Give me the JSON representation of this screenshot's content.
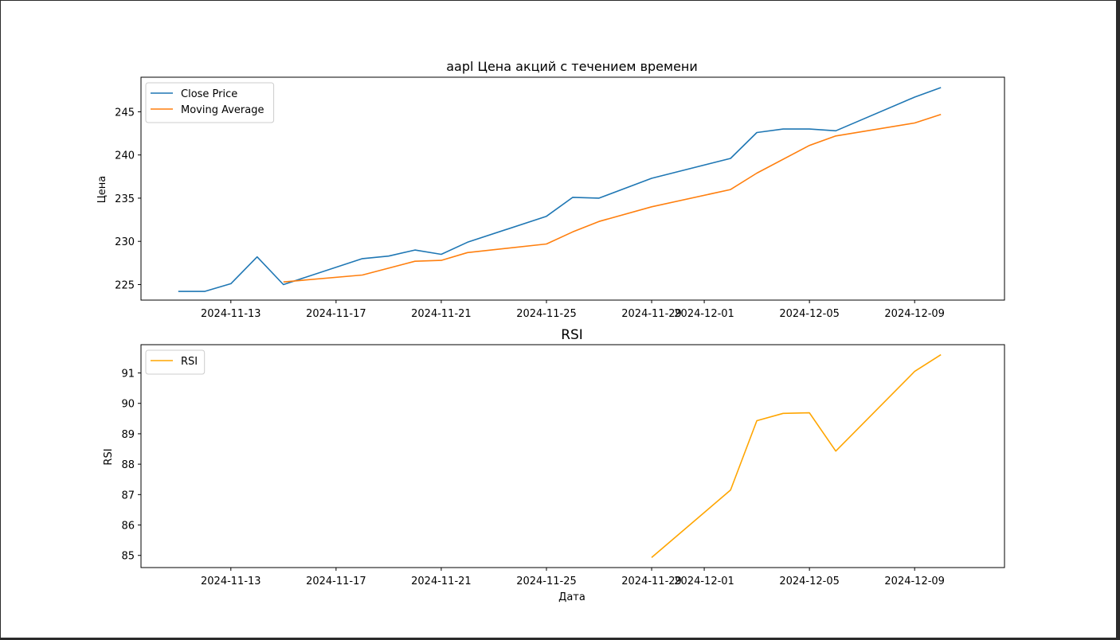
{
  "chart_data": [
    {
      "type": "line",
      "title": "aapl Цена акций с течением времени",
      "xlabel": "",
      "ylabel": "Цена",
      "x_ticks": [
        "2024-11-13",
        "2024-11-17",
        "2024-11-21",
        "2024-11-25",
        "2024-11-29",
        "2024-12-01",
        "2024-12-05",
        "2024-12-09"
      ],
      "y_ticks": [
        225,
        230,
        235,
        240,
        245
      ],
      "ylim": [
        223.2,
        249.0
      ],
      "xlim": [
        "2024-11-09T14:00",
        "2024-12-12T10:00"
      ],
      "legend_position": "upper-left",
      "grid": false,
      "series": [
        {
          "name": "Close Price",
          "color": "#1f77b4",
          "points": [
            [
              "2024-11-11",
              224.2
            ],
            [
              "2024-11-12",
              224.2
            ],
            [
              "2024-11-13",
              225.1
            ],
            [
              "2024-11-14",
              228.2
            ],
            [
              "2024-11-15",
              225.0
            ],
            [
              "2024-11-18",
              228.0
            ],
            [
              "2024-11-19",
              228.3
            ],
            [
              "2024-11-20",
              229.0
            ],
            [
              "2024-11-21",
              228.5
            ],
            [
              "2024-11-22",
              229.9
            ],
            [
              "2024-11-25",
              232.9
            ],
            [
              "2024-11-26",
              235.1
            ],
            [
              "2024-11-27",
              235.0
            ],
            [
              "2024-11-29",
              237.3
            ],
            [
              "2024-12-02",
              239.6
            ],
            [
              "2024-12-03",
              242.6
            ],
            [
              "2024-12-04",
              243.0
            ],
            [
              "2024-12-05",
              243.0
            ],
            [
              "2024-12-06",
              242.8
            ],
            [
              "2024-12-09",
              246.7
            ],
            [
              "2024-12-10",
              247.8
            ]
          ]
        },
        {
          "name": "Moving Average",
          "color": "#ff7f0e",
          "points": [
            [
              "2024-11-15",
              225.3
            ],
            [
              "2024-11-18",
              226.1
            ],
            [
              "2024-11-20",
              227.7
            ],
            [
              "2024-11-21",
              227.8
            ],
            [
              "2024-11-22",
              228.7
            ],
            [
              "2024-11-25",
              229.7
            ],
            [
              "2024-11-26",
              231.1
            ],
            [
              "2024-11-27",
              232.3
            ],
            [
              "2024-11-29",
              234.0
            ],
            [
              "2024-12-02",
              236.0
            ],
            [
              "2024-12-03",
              237.9
            ],
            [
              "2024-12-05",
              241.1
            ],
            [
              "2024-12-06",
              242.2
            ],
            [
              "2024-12-09",
              243.7
            ],
            [
              "2024-12-10",
              244.7
            ]
          ]
        }
      ]
    },
    {
      "type": "line",
      "title": "RSI",
      "xlabel": "Дата",
      "ylabel": "RSI",
      "x_ticks": [
        "2024-11-13",
        "2024-11-17",
        "2024-11-21",
        "2024-11-25",
        "2024-11-29",
        "2024-12-01",
        "2024-12-05",
        "2024-12-09"
      ],
      "y_ticks": [
        85,
        86,
        87,
        88,
        89,
        90,
        91
      ],
      "ylim": [
        84.6,
        91.93
      ],
      "xlim": [
        "2024-11-09T14:00",
        "2024-12-12T10:00"
      ],
      "legend_position": "upper-left",
      "grid": false,
      "series": [
        {
          "name": "RSI",
          "color": "#ffa500",
          "points": [
            [
              "2024-11-29",
              84.93
            ],
            [
              "2024-12-02",
              87.15
            ],
            [
              "2024-12-03",
              89.43
            ],
            [
              "2024-12-04",
              89.67
            ],
            [
              "2024-12-05",
              89.69
            ],
            [
              "2024-12-06",
              88.43
            ],
            [
              "2024-12-09",
              91.05
            ],
            [
              "2024-12-10",
              91.6
            ]
          ]
        }
      ]
    }
  ]
}
